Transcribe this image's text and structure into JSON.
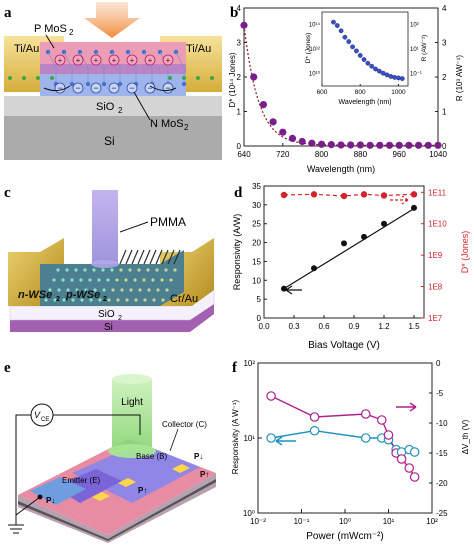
{
  "figure": {
    "panel_labels": [
      "a",
      "b",
      "c",
      "d",
      "e",
      "f"
    ]
  },
  "panel_a": {
    "label_electrode_left": "Ti/Au",
    "label_electrode_right": "Ti/Au",
    "label_p_mos2": "P MoS",
    "label_n_mos2": "N MoS",
    "label_sub2": "2",
    "label_sio2": "SiO",
    "label_si": "Si",
    "colors": {
      "electrode": "#e8c96a",
      "p_layer": "#e89ab0",
      "n_layer": "#8fa8e0",
      "light": "#f2a25a",
      "sio2": "#cfcfcf",
      "si": "#a7a7a7"
    }
  },
  "panel_c": {
    "label_pmma": "PMMA",
    "label_n_wse2": "n-WSe",
    "label_p_wse2": "p-WSe",
    "label_crau": "Cr/Au",
    "label_sio2": "SiO",
    "label_si": "Si",
    "label_sub2": "2",
    "colors": {
      "electrode": "#d9b23a",
      "beam": "#a79ae0",
      "flake": "#4f8c9c",
      "si": "#a35fb0",
      "sio2": "#f3f0fa"
    }
  },
  "panel_e": {
    "label_light": "Light",
    "label_vce": "V",
    "label_vce_sub": "CE",
    "label_collector": "Collector (C)",
    "label_base": "Base (B)",
    "label_emitter": "Emitter (E)",
    "label_p_up_1": "P↑",
    "label_p_down_1": "P↓",
    "label_p_up_2": "P↑",
    "label_p_down_2": "P↓",
    "colors": {
      "beam": "#9be08a",
      "collector": "#e78aa3",
      "base": "#8f86e6",
      "emitter": "#7f6ad9",
      "contact": "#ffd64a"
    }
  },
  "chart_data": [
    {
      "panel": "b",
      "type": "scatter",
      "title": "",
      "xlabel": "Wavelength (nm)",
      "ylabel": "D* (10¹⁴ Jones)",
      "ylabel_right": "R (10³ AW⁻¹)",
      "xlim": [
        640,
        1040
      ],
      "ylim": [
        0,
        4
      ],
      "ylim_right": [
        0,
        4
      ],
      "x_ticks": [
        "640",
        "720",
        "800",
        "880",
        "960",
        "1040"
      ],
      "y_ticks": [
        "0",
        "1",
        "2",
        "3",
        "4"
      ],
      "y_ticks_right": [
        "0",
        "1",
        "2",
        "3",
        "4"
      ],
      "marker_color": "#7a1f8a",
      "fit_color": "#8a1f2a",
      "series": [
        {
          "x": [
            640,
            660,
            680,
            700,
            720,
            740,
            760,
            780,
            800,
            820,
            840,
            860,
            880,
            900,
            920,
            940,
            960,
            980,
            1000,
            1020,
            1040
          ],
          "values": [
            3.5,
            2.0,
            1.2,
            0.7,
            0.4,
            0.22,
            0.13,
            0.08,
            0.05,
            0.04,
            0.03,
            0.03,
            0.03,
            0.02,
            0.02,
            0.02,
            0.02,
            0.02,
            0.02,
            0.02,
            0.02
          ]
        }
      ],
      "inset": {
        "xlabel": "Wavelength (nm)",
        "ylabel": "D* (Jones)",
        "ylabel_right": "R (AW⁻¹)",
        "xlim": [
          600,
          1050
        ],
        "x_ticks": [
          "600",
          "800",
          "1000"
        ],
        "y_ticks": [
          "10¹⁰",
          "10¹²",
          "10¹⁴"
        ],
        "y_ticks_right": [
          "10⁻¹",
          "10¹",
          "10³"
        ],
        "x": [
          660,
          680,
          700,
          720,
          740,
          760,
          780,
          800,
          820,
          840,
          860,
          880,
          900,
          920,
          940,
          960,
          980,
          1000,
          1020
        ],
        "values": [
          150000000000000.0,
          80000000000000.0,
          30000000000000.0,
          9000000000000.0,
          4000000000000.0,
          1500000000000.0,
          700000000000.0,
          300000000000.0,
          140000000000.0,
          70000000000.0,
          40000000000.0,
          24000000000.0,
          16000000000.0,
          11000000000.0,
          8000000000.0,
          6000000000.0,
          5000000000.0,
          4500000000.0,
          4000000000.0
        ]
      }
    },
    {
      "panel": "d",
      "type": "line",
      "title": "",
      "xlabel": "Bias Voltage (V)",
      "ylabel": "Responsivity (A/W)",
      "ylabel_right": "D* (Jones)",
      "xlim": [
        0.0,
        1.6
      ],
      "ylim": [
        0,
        35
      ],
      "x_ticks": [
        "0.0",
        "0.3",
        "0.6",
        "0.9",
        "1.2",
        "1.5"
      ],
      "y_ticks": [
        "0",
        "5",
        "10",
        "15",
        "20",
        "25",
        "30",
        "35"
      ],
      "y_ticks_right": [
        "1E7",
        "1E8",
        "1E9",
        "1E10",
        "1E11"
      ],
      "x": [
        0.2,
        0.5,
        0.8,
        1.0,
        1.2,
        1.5
      ],
      "series": [
        {
          "name": "Responsivity",
          "values": [
            7.8,
            13.2,
            19.8,
            21.5,
            25.0,
            29.2
          ],
          "color": "#111111"
        },
        {
          "name": "D*",
          "values": [
            82000000000.0,
            86000000000.0,
            76000000000.0,
            86000000000.0,
            79000000000.0,
            86000000000.0
          ],
          "color": "#d2232a"
        }
      ],
      "fit": [
        [
          0.2,
          7.8
        ],
        [
          1.5,
          29.0
        ]
      ]
    },
    {
      "panel": "f",
      "type": "line",
      "title": "",
      "xlabel": "Power (mWcm⁻²)",
      "ylabel": "Responsivity (A W⁻¹)",
      "ylabel_right": "ΔV_th (V)",
      "xscale": "log",
      "yscale": "log",
      "xlim": [
        0.01,
        100
      ],
      "ylim": [
        1,
        100
      ],
      "ylim_right": [
        -25,
        0
      ],
      "x_ticks": [
        "10⁻²",
        "10⁻¹",
        "10⁰",
        "10¹",
        "10²"
      ],
      "y_ticks": [
        "10⁰",
        "10¹",
        "10²"
      ],
      "y_ticks_right": [
        "-25",
        "-20",
        "-15",
        "-10",
        "-5",
        "0"
      ],
      "x": [
        0.02,
        0.2,
        3,
        7,
        10,
        15,
        20,
        30,
        40
      ],
      "series": [
        {
          "name": "Responsivity",
          "values": [
            10.0,
            12.5,
            10.0,
            10.0,
            9.5,
            7.0,
            6.5,
            7.0,
            6.5
          ],
          "color": "#1e8fc0"
        },
        {
          "name": "ΔVth",
          "values": [
            -5.5,
            -9.0,
            -8.5,
            -9.5,
            -12.0,
            -15.0,
            -16.0,
            -17.5,
            -19.0
          ],
          "color": "#b0208a"
        }
      ]
    }
  ]
}
